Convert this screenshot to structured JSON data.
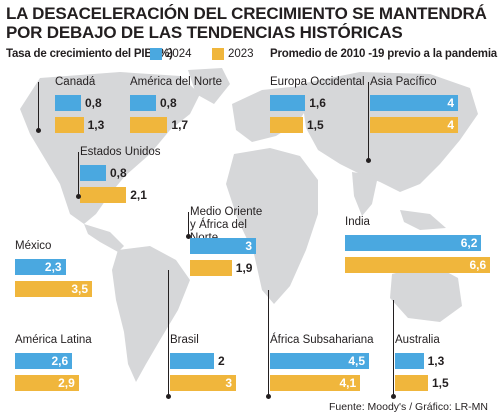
{
  "title": "LA DESACELERACIÓN DEL CRECIMIENTO SE MANTENDRÁ POR DEBAJO DE LAS TENDENCIAS HISTÓRICAS",
  "subtitle": "Tasa de crecimiento del PIB (%)",
  "avg_label": "Promedio de 2010 -19 previo a la pandemia",
  "source": "Fuente: Moody's / Gráfico: LR-MN",
  "colors": {
    "s2024": "#4aa8e0",
    "s2023": "#f0b63c",
    "map": "#d6d7d9"
  },
  "chart_data": {
    "type": "bar",
    "title": "LA DESACELERACIÓN DEL CRECIMIENTO SE MANTENDRÁ POR DEBAJO DE LAS TENDENCIAS HISTÓRICAS",
    "ylabel": "Tasa de crecimiento del PIB (%)",
    "categories": [
      "Canadá",
      "América del Norte",
      "Europa Occidental",
      "Asia Pacífico",
      "Estados Unidos",
      "Medio Oriente y África del Norte",
      "India",
      "México",
      "América Latina",
      "Brasil",
      "África Subsahariana",
      "Australia"
    ],
    "series": [
      {
        "name": "2024",
        "values": [
          0.8,
          0.8,
          1.6,
          4,
          0.8,
          3,
          6.2,
          2.3,
          2.6,
          2,
          4.5,
          1.3
        ],
        "labels": [
          "0,8",
          "0,8",
          "1,6",
          "4",
          "0,8",
          "3",
          "6,2",
          "2,3",
          "2,6",
          "2",
          "4,5",
          "1,3"
        ]
      },
      {
        "name": "2023",
        "values": [
          1.3,
          1.7,
          1.5,
          4,
          2.1,
          1.9,
          6.6,
          3.5,
          2.9,
          3,
          4.1,
          1.5
        ],
        "labels": [
          "1,3",
          "1,7",
          "1,5",
          "4",
          "2,1",
          "1,9",
          "6,6",
          "3,5",
          "2,9",
          "3",
          "4,1",
          "1,5"
        ]
      }
    ],
    "legend": "top"
  }
}
